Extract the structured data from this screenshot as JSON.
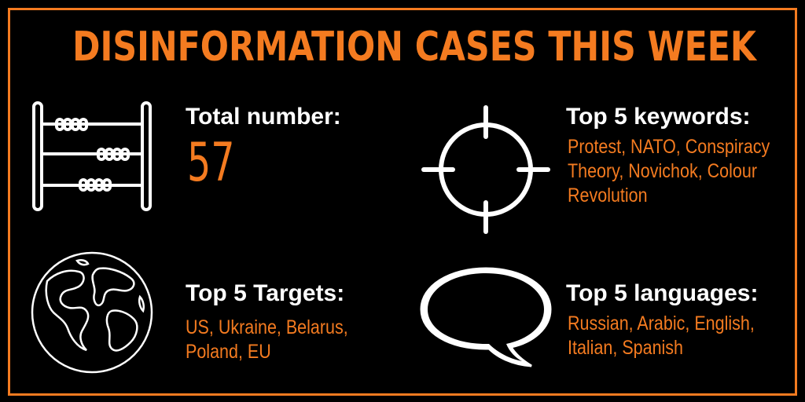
{
  "title": "DISINFORMATION CASES THIS WEEK",
  "colors": {
    "accent": "#f47b20",
    "background": "#000000",
    "text": "#ffffff"
  },
  "total": {
    "heading": "Total number:",
    "value": "57",
    "icon": "abacus-icon"
  },
  "keywords": {
    "heading": "Top 5 keywords:",
    "text": "Protest, NATO, Conspiracy Theory, Novichok, Colour Revolution",
    "icon": "crosshair-icon"
  },
  "targets": {
    "heading": "Top 5 Targets:",
    "text": "US, Ukraine, Belarus, Poland, EU",
    "icon": "globe-icon"
  },
  "languages": {
    "heading": "Top 5 languages:",
    "text": "Russian, Arabic, English, Italian, Spanish",
    "icon": "speech-bubble-icon"
  }
}
